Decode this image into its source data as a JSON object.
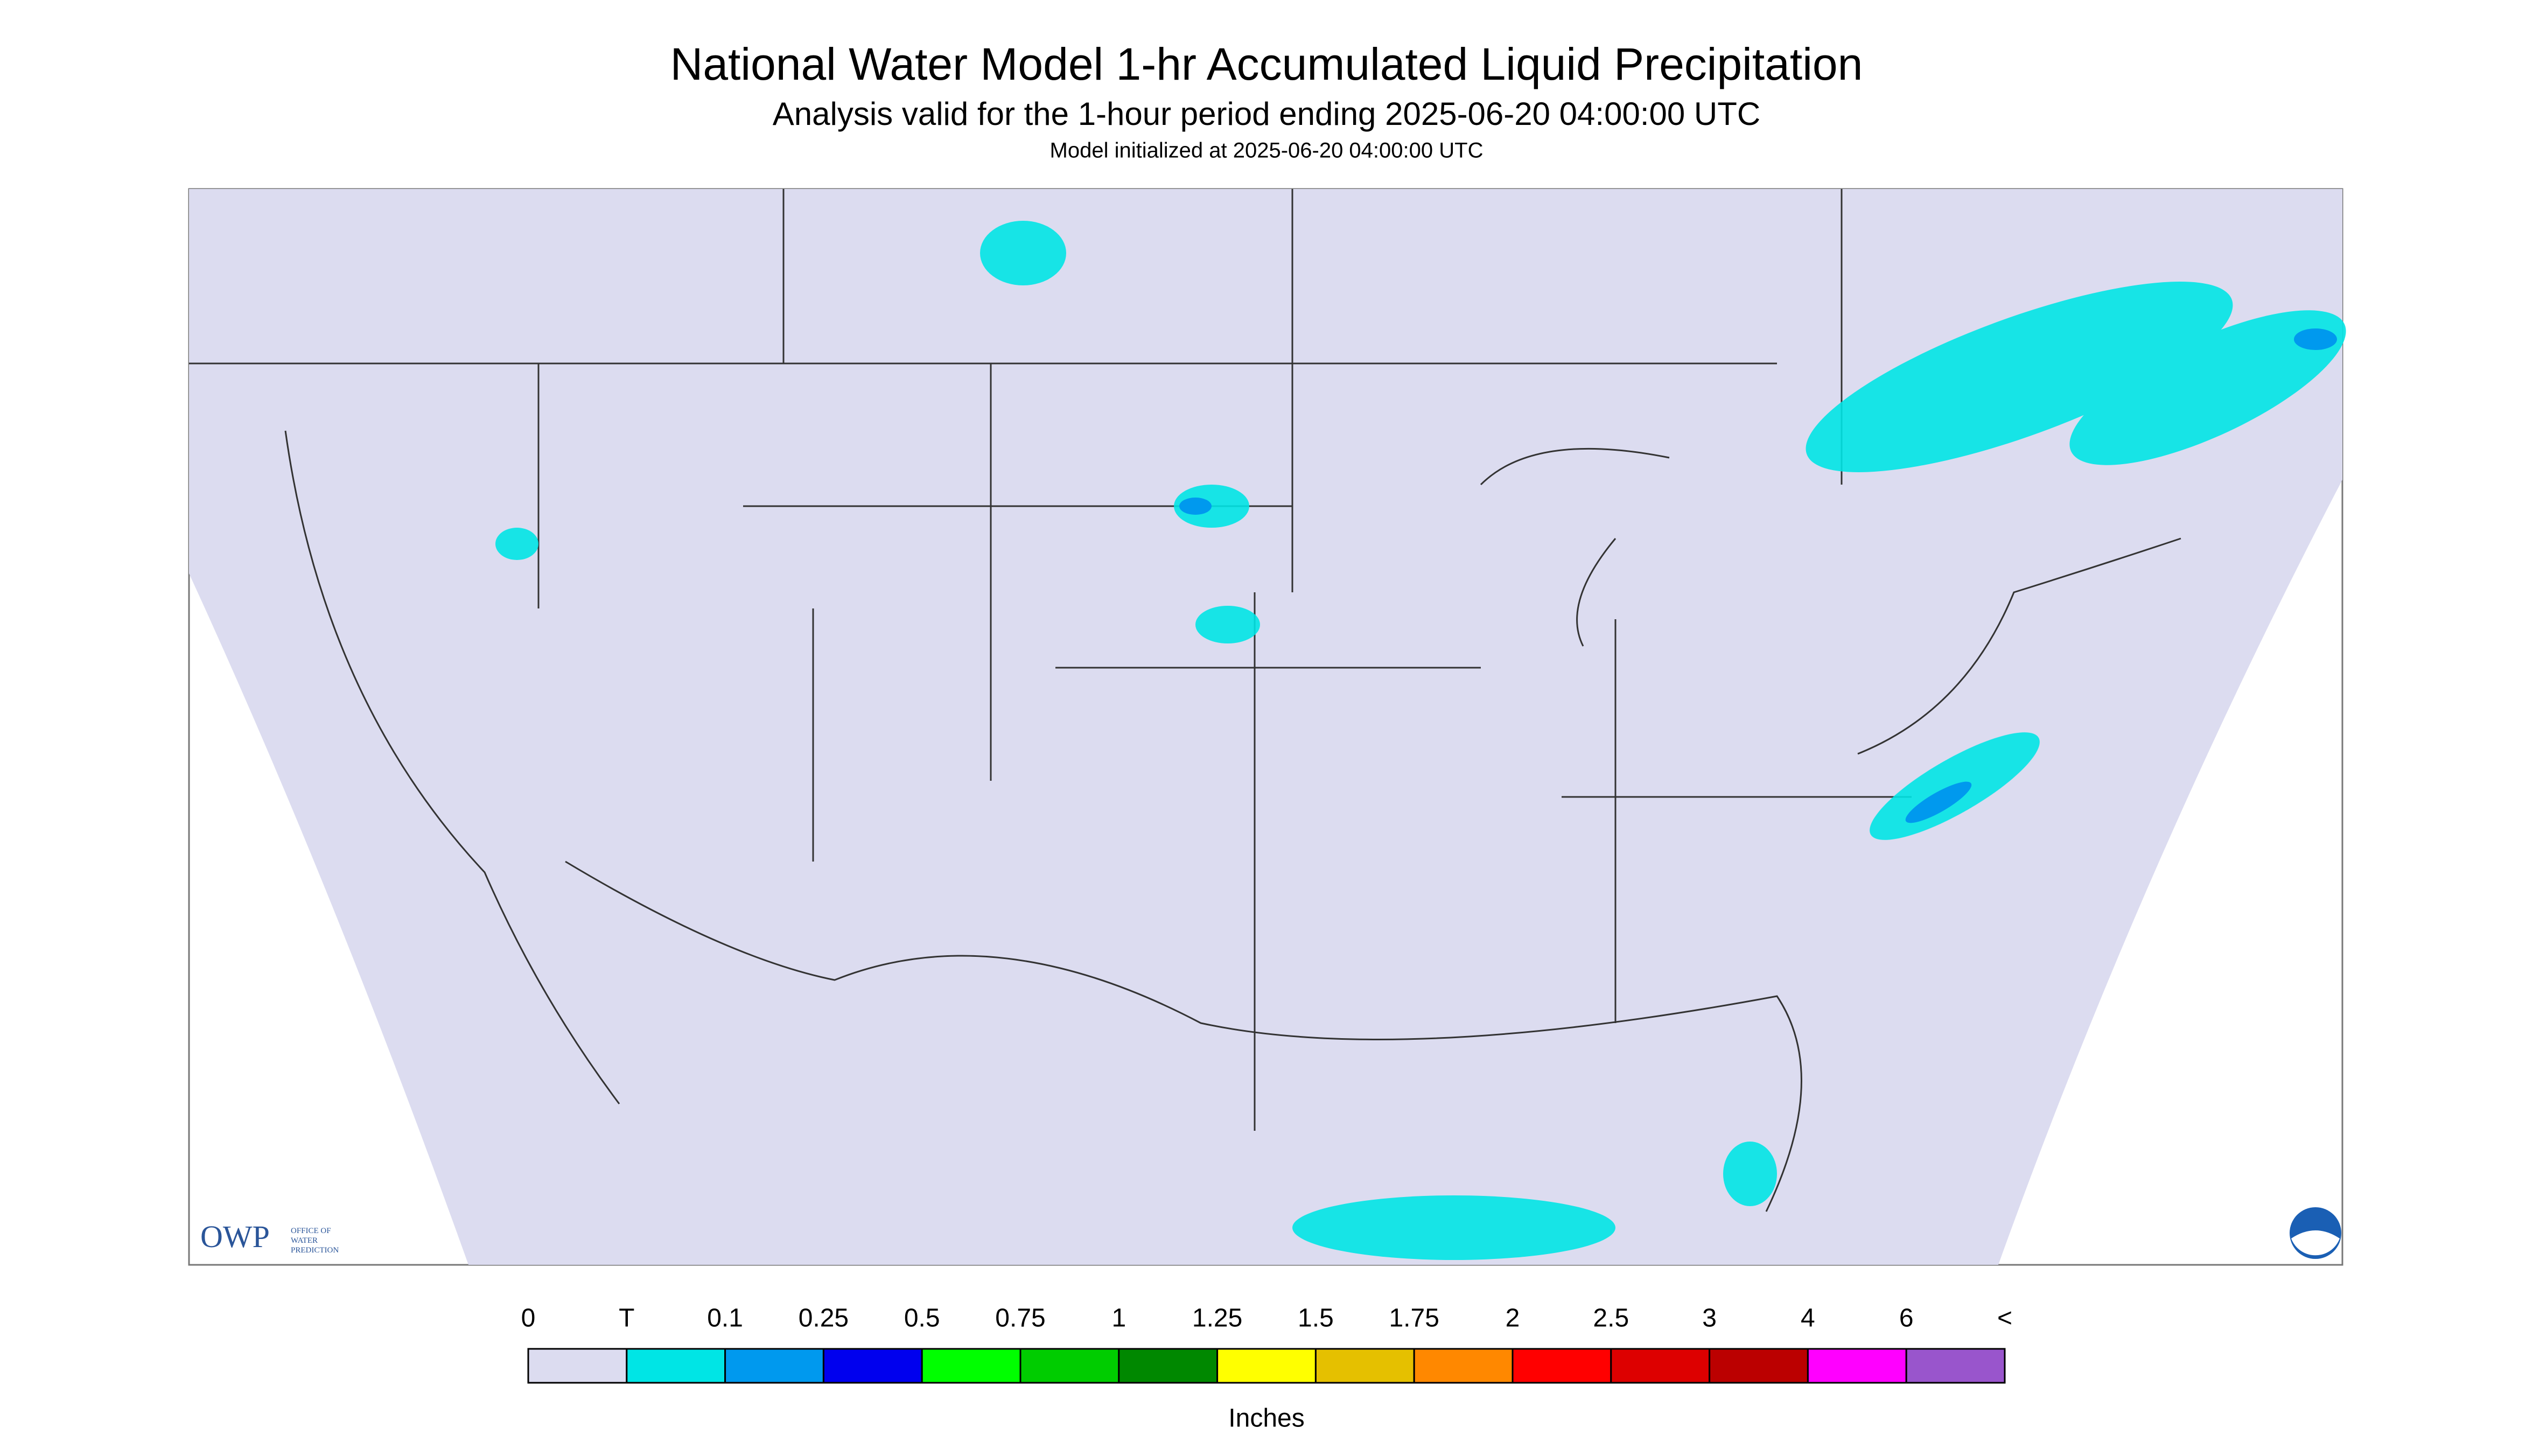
{
  "header": {
    "title": "National Water Model 1-hr Accumulated Liquid Precipitation",
    "subtitle": "Analysis valid for the 1-hour period ending 2025-06-20 04:00:00 UTC",
    "note": "Model initialized at 2025-06-20 04:00:00 UTC"
  },
  "legend": {
    "labels": [
      "0",
      "T",
      "0.1",
      "0.25",
      "0.5",
      "0.75",
      "1",
      "1.25",
      "1.5",
      "1.75",
      "2",
      "2.5",
      "3",
      "4",
      "6",
      "<"
    ],
    "colors": [
      "#dcdcf0",
      "#00e5e5",
      "#0099ee",
      "#0000ee",
      "#00ff00",
      "#00cc00",
      "#008800",
      "#ffff00",
      "#e5c000",
      "#ff8800",
      "#ff0000",
      "#dd0000",
      "#bb0000",
      "#ff00ff",
      "#9955cc"
    ],
    "unit": "Inches"
  },
  "logo": {
    "name": "OWP",
    "line1": "OFFICE OF",
    "line2": "WATER",
    "line3": "PREDICTION"
  }
}
